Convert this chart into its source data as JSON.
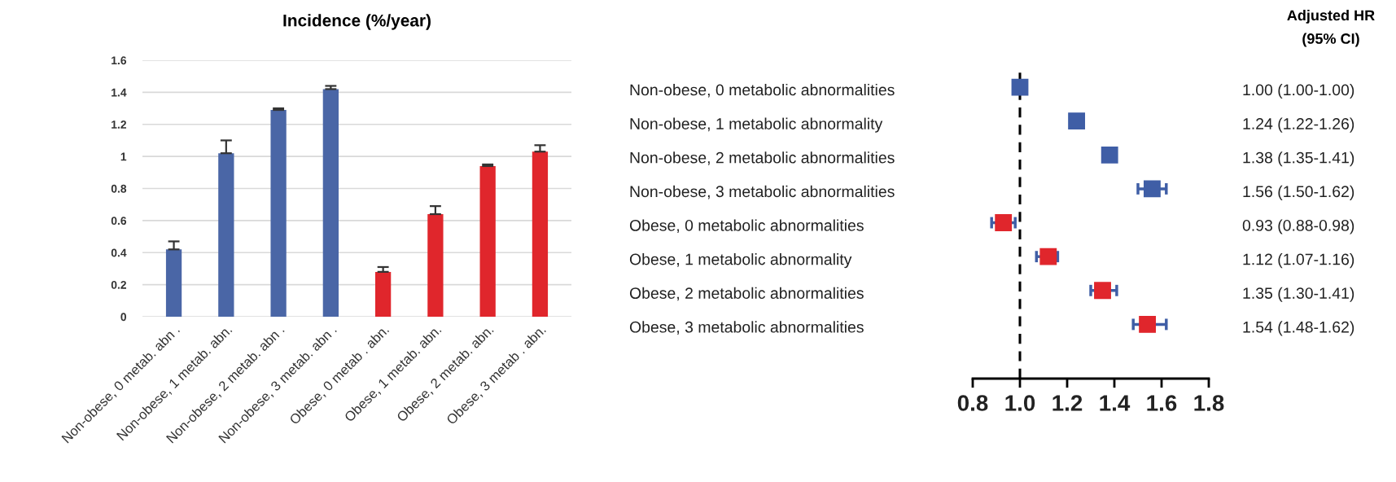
{
  "chart_data": [
    {
      "type": "bar",
      "title": "Incidence (%/year)",
      "categories": [
        "Non-obese, 0 metab. abn .",
        "Non-obese, 1 metab. abn.",
        "Non-obese, 2 metab. abn .",
        "Non-obese, 3 metab. abn .",
        "Obese, 0 metab . abn.",
        "Obese, 1 metab. abn.",
        "Obese, 2 metab. abn.",
        "Obese, 3 metab . abn."
      ],
      "values": [
        0.42,
        1.02,
        1.29,
        1.42,
        0.28,
        0.64,
        0.94,
        1.03
      ],
      "errors": [
        [
          0.42,
          0.47
        ],
        [
          1.02,
          1.1
        ],
        [
          1.29,
          1.3
        ],
        [
          1.42,
          1.44
        ],
        [
          0.28,
          0.31
        ],
        [
          0.64,
          0.69
        ],
        [
          0.94,
          0.95
        ],
        [
          1.03,
          1.07
        ]
      ],
      "colors": [
        "#4a66a6",
        "#4a66a6",
        "#4a66a6",
        "#4a66a6",
        "#e0262c",
        "#e0262c",
        "#e0262c",
        "#e0262c"
      ],
      "ylim": [
        0,
        1.6
      ],
      "yticks": [
        0,
        0.2,
        0.4,
        0.6,
        0.8,
        1,
        1.2,
        1.4,
        1.6
      ],
      "grid": "y"
    },
    {
      "type": "scatter",
      "annotations": [
        "Adjusted HR\n(95% CI)"
      ],
      "orientation": "horizontal",
      "marker": "square",
      "categories": [
        "Non-obese, 0 metabolic abnormalities",
        "Non-obese, 1 metabolic abnormality",
        "Non-obese, 2 metabolic abnormalities",
        "Non-obese, 3 metabolic abnormalities",
        "Obese, 0 metabolic abnormalities",
        "Obese, 1 metabolic abnormality",
        "Obese, 2 metabolic abnormalities",
        "Obese, 3 metabolic abnormalities"
      ],
      "values": [
        1.0,
        1.24,
        1.38,
        1.56,
        0.93,
        1.12,
        1.35,
        1.54
      ],
      "errors": [
        [
          1.0,
          1.0
        ],
        null,
        null,
        [
          1.5,
          1.62
        ],
        [
          0.88,
          0.98
        ],
        [
          1.07,
          1.16
        ],
        [
          1.3,
          1.41
        ],
        [
          1.48,
          1.62
        ]
      ],
      "colors": [
        "#3f5ea6",
        "#3f5ea6",
        "#3f5ea6",
        "#3f5ea6",
        "#e0262c",
        "#e0262c",
        "#e0262c",
        "#e0262c"
      ],
      "value_labels": [
        "1.00 (1.00-1.00)",
        "1.24 (1.22-1.26)",
        "1.38 (1.35-1.41)",
        "1.56 (1.50-1.62)",
        "0.93 (0.88-0.98)",
        "1.12 (1.07-1.16)",
        "1.35 (1.30-1.41)",
        "1.54 (1.48-1.62)"
      ],
      "xlim": [
        0.8,
        1.8
      ],
      "xticks": [
        0.8,
        {
          "value": 1.0,
          "label": "1.0"
        },
        1.2,
        1.4,
        1.6,
        1.8
      ],
      "ref_lines": [
        {
          "axis": "x",
          "value": 1.0,
          "color": "#000000",
          "line_style": "dashed"
        }
      ],
      "grid": false
    }
  ]
}
